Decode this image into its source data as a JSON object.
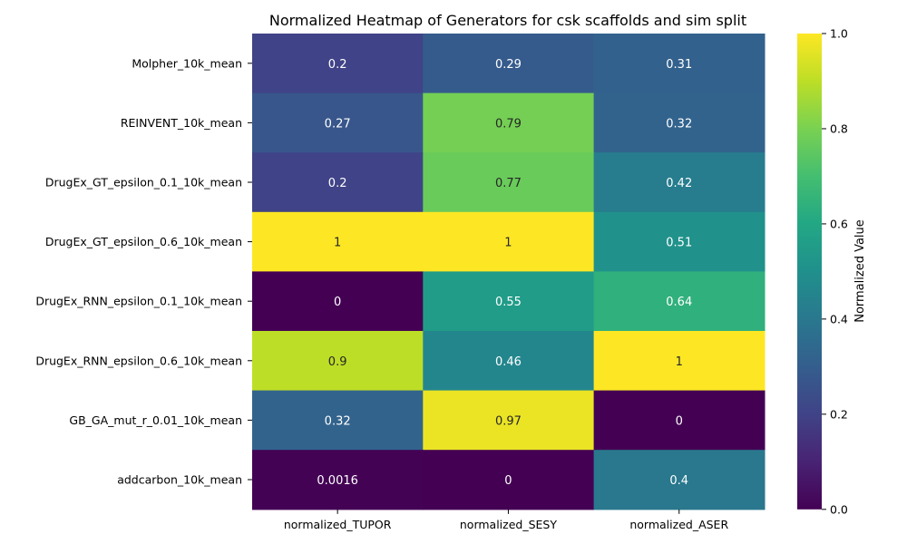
{
  "chart_data": {
    "type": "heatmap",
    "title": "Normalized Heatmap of Generators for csk scaffolds and sim split",
    "xlabel": "",
    "ylabel": "",
    "rows": [
      "Molpher_10k_mean",
      "REINVENT_10k_mean",
      "DrugEx_GT_epsilon_0.1_10k_mean",
      "DrugEx_GT_epsilon_0.6_10k_mean",
      "DrugEx_RNN_epsilon_0.1_10k_mean",
      "DrugEx_RNN_epsilon_0.6_10k_mean",
      "GB_GA_mut_r_0.01_10k_mean",
      "addcarbon_10k_mean"
    ],
    "columns": [
      "normalized_TUPOR",
      "normalized_SESY",
      "normalized_ASER"
    ],
    "values": [
      [
        0.2,
        0.29,
        0.31
      ],
      [
        0.27,
        0.79,
        0.32
      ],
      [
        0.2,
        0.77,
        0.42
      ],
      [
        1,
        1,
        0.51
      ],
      [
        0,
        0.55,
        0.64
      ],
      [
        0.9,
        0.46,
        1
      ],
      [
        0.32,
        0.97,
        0
      ],
      [
        0.0016,
        0,
        0.4
      ]
    ],
    "labels": [
      [
        "0.2",
        "0.29",
        "0.31"
      ],
      [
        "0.27",
        "0.79",
        "0.32"
      ],
      [
        "0.2",
        "0.77",
        "0.42"
      ],
      [
        "1",
        "1",
        "0.51"
      ],
      [
        "0",
        "0.55",
        "0.64"
      ],
      [
        "0.9",
        "0.46",
        "1"
      ],
      [
        "0.32",
        "0.97",
        "0"
      ],
      [
        "0.0016",
        "0",
        "0.4"
      ]
    ],
    "colormap": "viridis",
    "vmin": 0,
    "vmax": 1,
    "colorbar": {
      "label": "Normalized Value",
      "ticks": [
        0.0,
        0.2,
        0.4,
        0.6,
        0.8,
        1.0
      ],
      "tick_labels": [
        "0.0",
        "0.2",
        "0.4",
        "0.6",
        "0.8",
        "1.0"
      ]
    }
  }
}
